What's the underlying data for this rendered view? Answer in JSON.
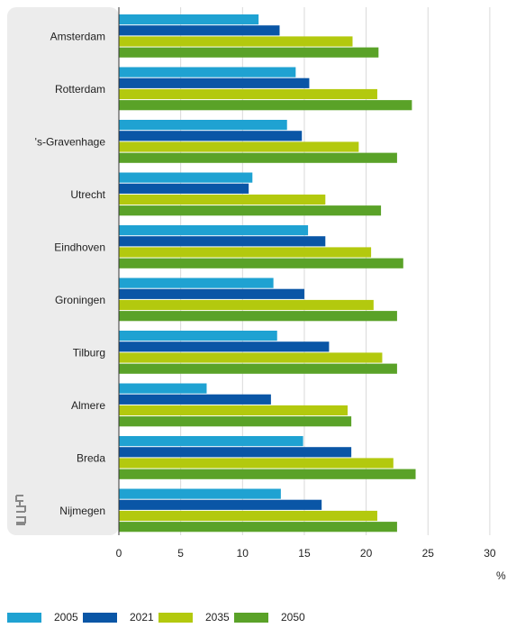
{
  "chart_data": {
    "type": "bar",
    "orientation": "horizontal",
    "categories": [
      "Amsterdam",
      "Rotterdam",
      "'s-Gravenhage",
      "Utrecht",
      "Eindhoven",
      "Groningen",
      "Tilburg",
      "Almere",
      "Breda",
      "Nijmegen"
    ],
    "series": [
      {
        "name": "2005",
        "color": "#1fa2d2",
        "values": [
          11.3,
          14.3,
          13.6,
          10.8,
          15.3,
          12.5,
          12.8,
          7.1,
          14.9,
          13.1
        ]
      },
      {
        "name": "2021",
        "color": "#0a56a6",
        "values": [
          13.0,
          15.4,
          14.8,
          10.5,
          16.7,
          15.0,
          17.0,
          12.3,
          18.8,
          16.4
        ]
      },
      {
        "name": "2035",
        "color": "#b3c90e",
        "values": [
          18.9,
          20.9,
          19.4,
          16.7,
          20.4,
          20.6,
          21.3,
          18.5,
          22.2,
          20.9
        ]
      },
      {
        "name": "2050",
        "color": "#5aa228",
        "values": [
          21.0,
          23.7,
          22.5,
          21.2,
          23.0,
          22.5,
          22.5,
          18.8,
          24.0,
          22.5
        ]
      }
    ],
    "xlim": [
      0,
      30
    ],
    "xticks": [
      "0",
      "5",
      "10",
      "15",
      "20",
      "25",
      "30"
    ],
    "xlabel": "%",
    "grid": true,
    "legend_position": "bottom",
    "logo": "cbs"
  }
}
